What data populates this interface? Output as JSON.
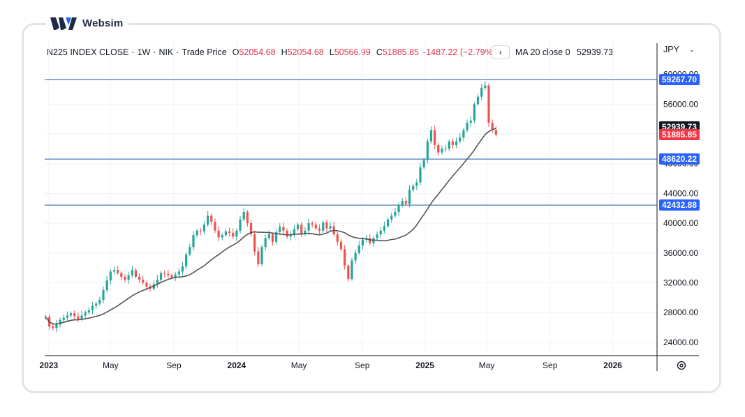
{
  "brand": {
    "name": "Websim"
  },
  "legend": {
    "symbol": "N225 INDEX CLOSE",
    "interval": "1W",
    "exchange": "NIK",
    "price_type": "Trade Price",
    "open_label": "O",
    "open": "52054.68",
    "high_label": "H",
    "high": "52054.68",
    "low_label": "L",
    "low": "50566.99",
    "close_label": "C",
    "close": "51885.85",
    "change": "-1487.22 (−2.79%)"
  },
  "ma_legend": {
    "label": "MA 20 close 0",
    "value": "52939.73"
  },
  "currency": {
    "label": "JPY"
  },
  "price_labels": [
    {
      "text": "59267.70",
      "value": 59267.7,
      "color": "#2962ff"
    },
    {
      "text": "52939.73",
      "value": 52939.73,
      "color": "#131722"
    },
    {
      "text": "51885.85",
      "value": 51885.85,
      "color": "#f23645"
    },
    {
      "text": "48620.22",
      "value": 48620.22,
      "color": "#2962ff"
    },
    {
      "text": "42432.88",
      "value": 42432.88,
      "color": "#2962ff"
    }
  ],
  "chart_data": {
    "type": "candlestick",
    "title": "N225 INDEX CLOSE",
    "interval": "1W",
    "ylim": [
      22200,
      61000
    ],
    "y_ticks": [
      "24000.00",
      "28000.00",
      "32000.00",
      "36000.00",
      "40000.00",
      "44000.00",
      "48000.00",
      "52000.00",
      "56000.00",
      "60000.00"
    ],
    "y_tick_values": [
      24000,
      28000,
      32000,
      36000,
      40000,
      44000,
      48000,
      52000,
      56000,
      60000
    ],
    "x_ticks": [
      {
        "label": "2023",
        "date": "2023-01-01",
        "bold": true
      },
      {
        "label": "May",
        "date": "2023-05-01",
        "bold": false
      },
      {
        "label": "Sep",
        "date": "2023-09-01",
        "bold": false
      },
      {
        "label": "2024",
        "date": "2024-01-01",
        "bold": true
      },
      {
        "label": "May",
        "date": "2024-05-01",
        "bold": false
      },
      {
        "label": "Sep",
        "date": "2024-09-01",
        "bold": false
      },
      {
        "label": "2025",
        "date": "2025-01-01",
        "bold": true
      },
      {
        "label": "May",
        "date": "2025-05-01",
        "bold": false
      },
      {
        "label": "Sep",
        "date": "2025-09-01",
        "bold": false
      },
      {
        "label": "2026",
        "date": "2026-01-01",
        "bold": true
      }
    ],
    "horizontal_lines": [
      59267.7,
      48620.22,
      42432.88
    ],
    "grid": true,
    "series": [
      {
        "name": "N225",
        "kind": "weekly close (approx.)",
        "color_up": "#26a69a",
        "color_down": "#ef5350",
        "start_date": "2022-12-26",
        "closes": [
          27400,
          26100,
          25900,
          26400,
          27000,
          27300,
          27600,
          27900,
          27500,
          27100,
          27600,
          28000,
          28300,
          28900,
          29200,
          29700,
          31000,
          32300,
          33500,
          33700,
          33300,
          32800,
          32400,
          33000,
          33700,
          32800,
          32400,
          32000,
          31500,
          31200,
          31800,
          32400,
          33300,
          33200,
          33000,
          32700,
          33100,
          33500,
          34200,
          35800,
          36800,
          38400,
          39000,
          38900,
          39800,
          41000,
          40200,
          39000,
          38100,
          38400,
          38900,
          38700,
          38200,
          39000,
          40500,
          41500,
          40000,
          38500,
          36200,
          34500,
          36800,
          38000,
          38500,
          37500,
          38800,
          39500,
          39000,
          38200,
          38500,
          39200,
          39800,
          38600,
          39000,
          40000,
          39800,
          39300,
          39000,
          40100,
          39300,
          39600,
          38500,
          37500,
          36500,
          34300,
          32500,
          35000,
          36000,
          37000,
          37800,
          38000,
          37300,
          38000,
          38500,
          39000,
          39600,
          40500,
          41000,
          41500,
          42500,
          43000,
          42600,
          44500,
          45000,
          45500,
          47500,
          48500,
          51000,
          52500,
          50500,
          49500,
          50000,
          50000,
          51000,
          50500,
          51000,
          51500,
          52500,
          53500,
          53800,
          56000,
          57000,
          58200,
          58500,
          53500,
          52500,
          51885.85
        ]
      }
    ],
    "moving_average": {
      "name": "MA 20 close 0",
      "period": 20,
      "last": 52939.73,
      "color": "#555555"
    }
  }
}
